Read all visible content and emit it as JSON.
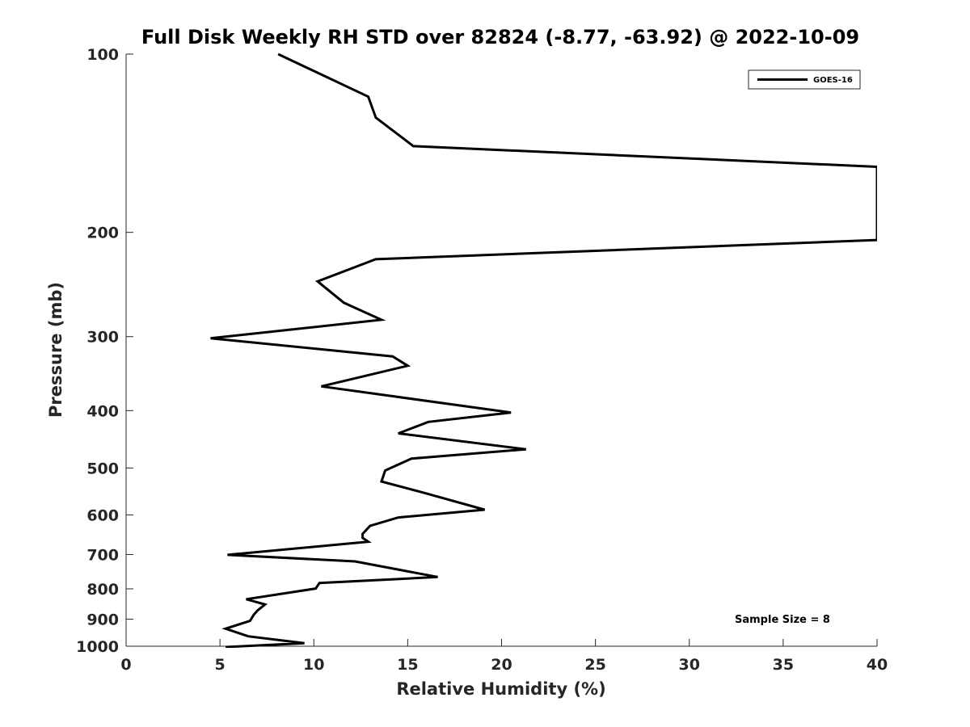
{
  "chart_data": {
    "type": "line",
    "title": "Full Disk Weekly RH STD over 82824 (-8.77, -63.92) @ 2022-10-09",
    "xlabel": "Relative Humidity (%)",
    "ylabel": "Pressure (mb)",
    "xlim": [
      0,
      40
    ],
    "ylim": [
      100,
      1000
    ],
    "y_scale": "log",
    "y_reversed": true,
    "grid": false,
    "x_ticks": [
      0,
      5,
      10,
      15,
      20,
      25,
      30,
      35,
      40
    ],
    "x_tick_labels": [
      "0",
      "5",
      "10",
      "15",
      "20",
      "25",
      "30",
      "35",
      "40"
    ],
    "y_ticks": [
      100,
      200,
      300,
      400,
      500,
      600,
      700,
      800,
      900,
      1000
    ],
    "y_tick_labels": [
      "100",
      "200",
      "300",
      "400",
      "500",
      "600",
      "700",
      "800",
      "900",
      "1000"
    ],
    "legend_position": "top-right",
    "annotation": "Sample Size = 8",
    "series": [
      {
        "name": "GOES-16",
        "color": "#000000",
        "x": [
          8.1,
          12.9,
          13.3,
          15.3,
          40.0,
          40.0,
          13.3,
          10.2,
          11.6,
          13.6,
          4.5,
          14.2,
          15.0,
          10.4,
          20.5,
          16.1,
          14.5,
          21.3,
          15.2,
          13.8,
          13.6,
          15.9,
          19.1,
          14.5,
          13.0,
          12.6,
          12.6,
          12.9,
          5.4,
          12.2,
          16.6,
          10.3,
          10.1,
          6.4,
          7.4,
          7.0,
          6.8,
          6.6,
          5.3,
          6.5,
          9.5,
          5.3
        ],
        "y": [
          100,
          118,
          128,
          143,
          155,
          206,
          222,
          242,
          263,
          281,
          302,
          324,
          336,
          364,
          403,
          418,
          437,
          465,
          482,
          505,
          527,
          551,
          588,
          606,
          626,
          646,
          656,
          666,
          701,
          719,
          764,
          782,
          799,
          833,
          850,
          870,
          885,
          906,
          934,
          962,
          988,
          1003
        ]
      }
    ]
  }
}
